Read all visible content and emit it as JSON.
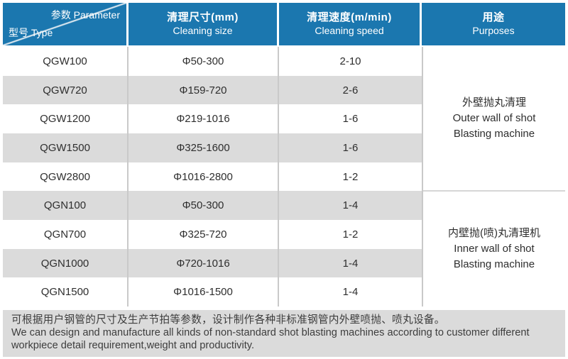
{
  "colors": {
    "header_blue": "#1b77af",
    "row_stripe_gray": "#dbdbdb",
    "divider_gray": "#c9c9c9",
    "footer_bg": "#dbdbdb",
    "header_text": "#ffffff",
    "body_text": "#2e2e2e"
  },
  "header": {
    "corner": {
      "top_right": "参数 Parameter",
      "bottom_left": "型号 Type"
    },
    "columns": [
      {
        "zh": "清理尺寸(mm)",
        "en": "Cleaning size"
      },
      {
        "zh": "清理速度(m/min)",
        "en": "Cleaning speed"
      },
      {
        "zh": "用途",
        "en": "Purposes"
      }
    ]
  },
  "table": {
    "rows": [
      {
        "model": "QGW100",
        "size": "Φ50-300",
        "speed": "2-10"
      },
      {
        "model": "QGW720",
        "size": "Φ159-720",
        "speed": "2-6"
      },
      {
        "model": "QGW1200",
        "size": "Φ219-1016",
        "speed": "1-6"
      },
      {
        "model": "QGW1500",
        "size": "Φ325-1600",
        "speed": "1-6"
      },
      {
        "model": "QGW2800",
        "size": "Φ1016-2800",
        "speed": "1-2"
      },
      {
        "model": "QGN100",
        "size": "Φ50-300",
        "speed": "1-4"
      },
      {
        "model": "QGN700",
        "size": "Φ325-720",
        "speed": "1-2"
      },
      {
        "model": "QGN1000",
        "size": "Φ720-1016",
        "speed": "1-4"
      },
      {
        "model": "QGN1500",
        "size": "Φ1016-1500",
        "speed": "1-4"
      }
    ],
    "purposes": [
      {
        "zh": "外壁抛丸清理",
        "en1": "Outer wall of shot",
        "en2": "Blasting machine",
        "row_span": 5
      },
      {
        "zh": "内壁抛(喷)丸清理机",
        "en1": "Inner wall of shot",
        "en2": "Blasting machine",
        "row_span": 4
      }
    ]
  },
  "footer": {
    "zh": "可根据用户钢管的尺寸及生产节拍等参数，设计制作各种非标准钢管内外壁喷抛、喷丸设备。",
    "en1": "We can design and manufacture all kinds of non-standard shot blasting machines according to customer different",
    "en2": "workpiece detail requirement,weight and productivity."
  }
}
